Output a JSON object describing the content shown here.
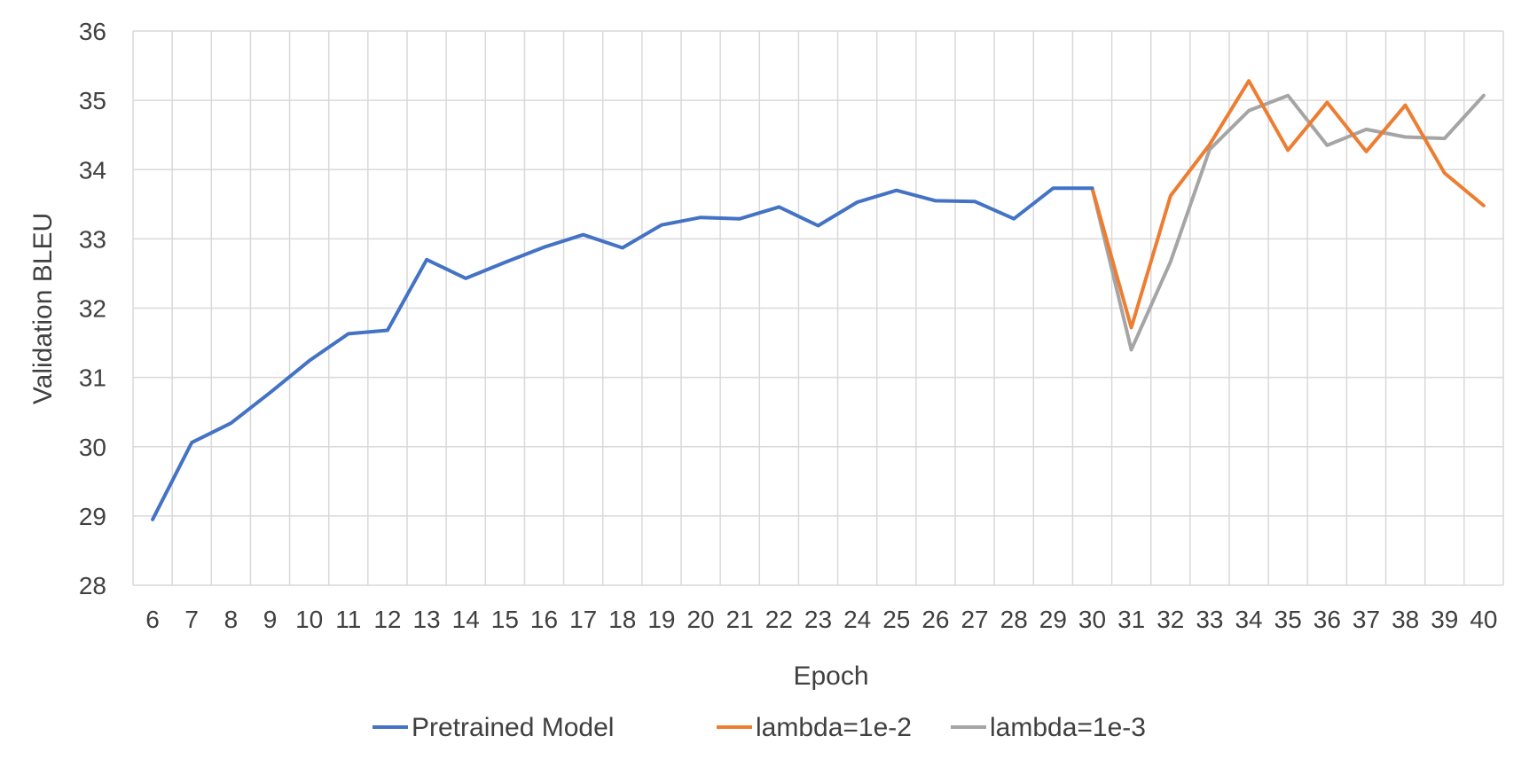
{
  "chart_data": {
    "type": "line",
    "title": "",
    "xlabel": "Epoch",
    "ylabel": "Validation BLEU",
    "x": [
      6,
      7,
      8,
      9,
      10,
      11,
      12,
      13,
      14,
      15,
      16,
      17,
      18,
      19,
      20,
      21,
      22,
      23,
      24,
      25,
      26,
      27,
      28,
      29,
      30,
      31,
      32,
      33,
      34,
      35,
      36,
      37,
      38,
      39,
      40
    ],
    "ylim": [
      28,
      36
    ],
    "yticks": [
      28,
      29,
      30,
      31,
      32,
      33,
      34,
      35,
      36
    ],
    "grid": true,
    "legend_position": "bottom",
    "series": [
      {
        "name": "Pretrained Model",
        "color": "#4472C4",
        "x": [
          6,
          7,
          8,
          9,
          10,
          11,
          12,
          13,
          14,
          15,
          16,
          17,
          18,
          19,
          20,
          21,
          22,
          23,
          24,
          25,
          26,
          27,
          28,
          29,
          30
        ],
        "values": [
          28.95,
          30.06,
          30.34,
          30.78,
          31.24,
          31.63,
          31.68,
          32.7,
          32.43,
          32.66,
          32.88,
          33.06,
          32.87,
          33.2,
          33.31,
          33.29,
          33.46,
          33.19,
          33.53,
          33.7,
          33.55,
          33.54,
          33.29,
          33.73,
          33.73
        ]
      },
      {
        "name": "lambda=1e-2",
        "color": "#ED7D31",
        "x": [
          30,
          31,
          32,
          33,
          34,
          35,
          36,
          37,
          38,
          39,
          40
        ],
        "values": [
          33.73,
          31.72,
          33.62,
          34.36,
          35.28,
          34.28,
          34.97,
          34.26,
          34.93,
          33.95,
          33.48
        ]
      },
      {
        "name": "lambda=1e-3",
        "color": "#A5A5A5",
        "x": [
          30,
          31,
          32,
          33,
          34,
          35,
          36,
          37,
          38,
          39,
          40
        ],
        "values": [
          33.73,
          31.4,
          32.67,
          34.29,
          34.85,
          35.07,
          34.35,
          34.58,
          34.47,
          34.45,
          35.07
        ]
      }
    ]
  }
}
